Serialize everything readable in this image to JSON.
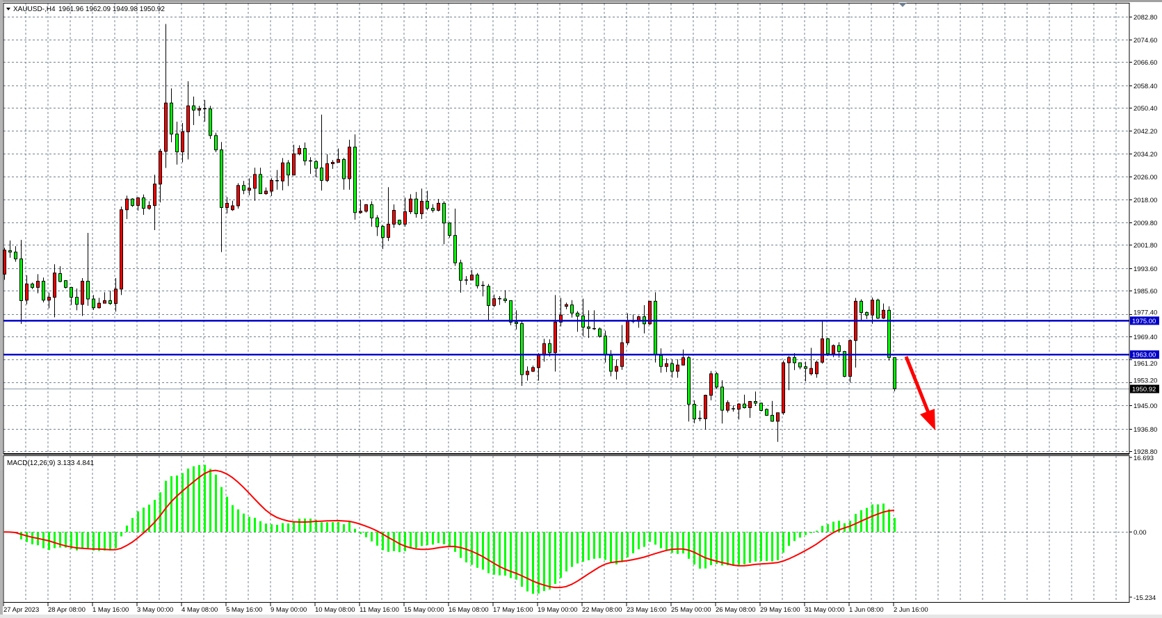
{
  "header": {
    "symbol": "XAUUSD-,H4",
    "ohlc": "1961.96 1962.09 1949.98 1950.92",
    "menu_icon": "triangle-down-icon"
  },
  "colors": {
    "background": "#ffffff",
    "grid": "#708090",
    "bull_body": "#ff0000",
    "bear_body": "#00ff00",
    "candle_outline": "#000000",
    "level_line": "#0000c8",
    "macd_histogram": "#00ff00",
    "macd_signal": "#ff0000",
    "arrow": "#ff0000",
    "bid_label_bg": "#000000"
  },
  "chart_data": [
    {
      "type": "candlestick",
      "title": "XAUUSD-,H4",
      "timeframe": "H4",
      "bull_color": "red",
      "bear_color": "green",
      "grid": true,
      "ylim": [
        1928.8,
        2082.8
      ],
      "price_ticks": [
        "2082.80",
        "2074.60",
        "2066.60",
        "2058.40",
        "2050.40",
        "2042.20",
        "2034.20",
        "2026.00",
        "2018.00",
        "2009.80",
        "2001.80",
        "1993.60",
        "1985.60",
        "1977.40",
        "1969.40",
        "1961.20",
        "1953.20",
        "1945.00",
        "1936.80",
        "1928.80"
      ],
      "time_labels": [
        "27 Apr 2023",
        "28 Apr 08:00",
        "1 May 16:00",
        "3 May 00:00",
        "4 May 08:00",
        "5 May 16:00",
        "9 May 00:00",
        "10 May 08:00",
        "11 May 16:00",
        "15 May 00:00",
        "16 May 08:00",
        "17 May 16:00",
        "19 May 00:00",
        "22 May 08:00",
        "23 May 16:00",
        "25 May 00:00",
        "26 May 08:00",
        "29 May 16:00",
        "31 May 00:00",
        "1 Jun 08:00",
        "2 Jun 16:00"
      ],
      "levels": [
        {
          "price": 1975.0,
          "label": "1975.00"
        },
        {
          "price": 1963.0,
          "label": "1963.00"
        }
      ],
      "current_price": {
        "price": 1950.92,
        "label": "1950.92"
      },
      "annotation": "red arrow pointing down after last candle",
      "candles_ohlc": [
        [
          1991.5,
          2000.8,
          1989.5,
          2000.0
        ],
        [
          1999.8,
          2003.4,
          1997.3,
          1999.3
        ],
        [
          1999.3,
          2001.4,
          1995.9,
          1996.9
        ],
        [
          1996.9,
          2003.6,
          1973.9,
          1982.1
        ],
        [
          1982.3,
          1991.1,
          1980.8,
          1988.0
        ],
        [
          1988.0,
          1988.5,
          1986.2,
          1986.8
        ],
        [
          1986.8,
          1991.5,
          1984.7,
          1989.0
        ],
        [
          1989.0,
          1990.3,
          1981.5,
          1982.3
        ],
        [
          1982.3,
          1984.9,
          1979.4,
          1983.3
        ],
        [
          1983.3,
          1995.0,
          1976.2,
          1991.9
        ],
        [
          1991.7,
          1994.3,
          1988.6,
          1988.9
        ],
        [
          1989.2,
          1989.4,
          1986.4,
          1986.8
        ],
        [
          1986.8,
          1987.0,
          1980.6,
          1983.3
        ],
        [
          1983.3,
          1986.4,
          1978.7,
          1980.8
        ],
        [
          1980.8,
          1990.1,
          1976.7,
          1989.0
        ],
        [
          1989.0,
          2006.1,
          1980.3,
          1982.7
        ],
        [
          1982.7,
          1984.1,
          1978.8,
          1979.6
        ],
        [
          1979.6,
          1983.1,
          1979.3,
          1981.2
        ],
        [
          1981.2,
          1985.1,
          1981.2,
          1982.1
        ],
        [
          1982.1,
          1985.6,
          1980.6,
          1981.1
        ],
        [
          1981.1,
          1990.1,
          1978.2,
          1986.2
        ],
        [
          1986.2,
          2015.4,
          1984.1,
          2014.3
        ],
        [
          2014.3,
          2019.3,
          2011.0,
          2018.1
        ],
        [
          2018.1,
          2018.4,
          2015.3,
          2015.8
        ],
        [
          2015.8,
          2018.8,
          2014.0,
          2018.5
        ],
        [
          2018.5,
          2019.7,
          2012.5,
          2014.8
        ],
        [
          2014.8,
          2017.3,
          2014.3,
          2015.8
        ],
        [
          2015.8,
          2026.7,
          2007.1,
          2023.4
        ],
        [
          2023.4,
          2035.9,
          2016.9,
          2035.0
        ],
        [
          2035.0,
          2080.1,
          2029.1,
          2052.1
        ],
        [
          2052.1,
          2057.3,
          2038.2,
          2041.1
        ],
        [
          2041.1,
          2045.5,
          2030.3,
          2034.8
        ],
        [
          2034.8,
          2045.0,
          2031.1,
          2041.9
        ],
        [
          2041.9,
          2059.8,
          2032.1,
          2051.1
        ],
        [
          2051.1,
          2054.4,
          2044.3,
          2049.6
        ],
        [
          2049.6,
          2051.1,
          2047.5,
          2050.1
        ],
        [
          2050.1,
          2053.2,
          2045.5,
          2050.0
        ],
        [
          2050.0,
          2051.1,
          2039.4,
          2040.6
        ],
        [
          2040.6,
          2041.6,
          2034.7,
          2035.5
        ],
        [
          2035.5,
          2038.3,
          1999.3,
          2015.1
        ],
        [
          2015.1,
          2018.8,
          2013.0,
          2016.6
        ],
        [
          2014.3,
          2017.5,
          2013.9,
          2015.7
        ],
        [
          2015.7,
          2023.7,
          2014.7,
          2022.9
        ],
        [
          2022.9,
          2024.5,
          2019.8,
          2021.2
        ],
        [
          2021.2,
          2025.4,
          2019.4,
          2021.9
        ],
        [
          2021.9,
          2029.2,
          2017.5,
          2026.8
        ],
        [
          2026.8,
          2029.2,
          2020.0,
          2020.0
        ],
        [
          2020.0,
          2022.2,
          2019.6,
          2020.9
        ],
        [
          2020.9,
          2025.5,
          2019.2,
          2024.7
        ],
        [
          2024.6,
          2028.4,
          2021.4,
          2024.5
        ],
        [
          2024.5,
          2032.6,
          2021.2,
          2030.9
        ],
        [
          2030.9,
          2031.9,
          2022.7,
          2026.6
        ],
        [
          2026.6,
          2037.3,
          2026.6,
          2034.1
        ],
        [
          2034.1,
          2037.1,
          2033.6,
          2036.0
        ],
        [
          2036.0,
          2038.1,
          2030.0,
          2031.6
        ],
        [
          2031.6,
          2032.9,
          2027.0,
          2031.5
        ],
        [
          2031.4,
          2031.9,
          2025.8,
          2029.0
        ],
        [
          2029.1,
          2048.0,
          2021.1,
          2024.7
        ],
        [
          2024.7,
          2034.0,
          2024.1,
          2030.6
        ],
        [
          2030.6,
          2031.9,
          2028.8,
          2031.1
        ],
        [
          2031.1,
          2036.0,
          2030.9,
          2032.1
        ],
        [
          2032.1,
          2032.7,
          2021.4,
          2025.3
        ],
        [
          2025.3,
          2039.1,
          2021.4,
          2036.5
        ],
        [
          2036.5,
          2041.0,
          2010.8,
          2013.3
        ],
        [
          2013.3,
          2017.9,
          2012.9,
          2013.8
        ],
        [
          2013.8,
          2016.3,
          2013.3,
          2016.1
        ],
        [
          2016.1,
          2017.3,
          2008.3,
          2011.4
        ],
        [
          2011.4,
          2012.4,
          2005.0,
          2008.3
        ],
        [
          2008.4,
          2008.9,
          2000.4,
          2004.5
        ],
        [
          2004.5,
          2022.3,
          2003.2,
          2009.2
        ],
        [
          2009.2,
          2016.2,
          2007.9,
          2014.1
        ],
        [
          2010.6,
          2010.8,
          2008.8,
          2009.2
        ],
        [
          2009.2,
          2018.6,
          2008.3,
          2013.6
        ],
        [
          2013.6,
          2019.8,
          2012.8,
          2018.1
        ],
        [
          2018.1,
          2020.6,
          2011.5,
          2012.9
        ],
        [
          2012.9,
          2021.8,
          2011.0,
          2017.3
        ],
        [
          2017.3,
          2021.0,
          2014.1,
          2014.8
        ],
        [
          2014.8,
          2016.3,
          2013.3,
          2014.1
        ],
        [
          2014.1,
          2018.1,
          2013.7,
          2016.6
        ],
        [
          2016.6,
          2017.3,
          2002.1,
          2009.6
        ],
        [
          2009.6,
          2009.9,
          2004.4,
          2005.2
        ],
        [
          2005.2,
          2014.7,
          1994.4,
          1995.5
        ],
        [
          1995.5,
          1996.6,
          1984.9,
          1989.3
        ],
        [
          1989.4,
          1990.8,
          1987.7,
          1989.3
        ],
        [
          1989.4,
          1993.0,
          1989.4,
          1991.2
        ],
        [
          1991.2,
          1991.9,
          1986.4,
          1987.4
        ],
        [
          1987.5,
          1989.0,
          1983.6,
          1987.4
        ],
        [
          1987.2,
          1988.0,
          1975.2,
          1980.4
        ],
        [
          1980.4,
          1984.3,
          1979.8,
          1982.8
        ],
        [
          1982.8,
          1983.7,
          1980.6,
          1982.7
        ],
        [
          1982.7,
          1985.8,
          1981.3,
          1982.1
        ],
        [
          1982.1,
          1982.1,
          1973.4,
          1974.5
        ],
        [
          1974.5,
          1978.7,
          1971.9,
          1974.0
        ],
        [
          1974.0,
          1974.8,
          1951.9,
          1955.9
        ],
        [
          1955.9,
          1958.8,
          1953.8,
          1957.1
        ],
        [
          1957.1,
          1959.1,
          1956.8,
          1958.4
        ],
        [
          1958.4,
          1963.5,
          1953.8,
          1962.8
        ],
        [
          1962.8,
          1968.6,
          1960.5,
          1966.9
        ],
        [
          1966.9,
          1968.4,
          1962.3,
          1963.7
        ],
        [
          1963.7,
          1984.1,
          1957.0,
          1974.5
        ],
        [
          1974.5,
          1983.1,
          1973.0,
          1977.0
        ],
        [
          1980.1,
          1981.4,
          1979.1,
          1980.7
        ],
        [
          1980.6,
          1982.3,
          1976.1,
          1977.7
        ],
        [
          1977.7,
          1978.4,
          1971.1,
          1976.6
        ],
        [
          1976.7,
          1982.8,
          1969.5,
          1972.7
        ],
        [
          1972.8,
          1978.7,
          1968.9,
          1972.3
        ],
        [
          1972.2,
          1978.7,
          1971.7,
          1972.1
        ],
        [
          1972.1,
          1972.6,
          1969.0,
          1969.5
        ],
        [
          1969.6,
          1971.5,
          1960.2,
          1963.1
        ],
        [
          1962.7,
          1964.6,
          1955.3,
          1957.1
        ],
        [
          1957.1,
          1961.3,
          1954.2,
          1958.8
        ],
        [
          1958.8,
          1973.5,
          1957.6,
          1967.2
        ],
        [
          1967.2,
          1977.6,
          1966.3,
          1974.8
        ],
        [
          1974.8,
          1977.2,
          1974.1,
          1974.7
        ],
        [
          1974.8,
          1976.8,
          1972.5,
          1976.4
        ],
        [
          1976.4,
          1980.5,
          1970.5,
          1973.9
        ],
        [
          1973.9,
          1981.9,
          1973.5,
          1981.9
        ],
        [
          1981.9,
          1985.1,
          1960.2,
          1963.1
        ],
        [
          1962.7,
          1965.2,
          1956.6,
          1958.8
        ],
        [
          1958.8,
          1961.7,
          1956.8,
          1959.8
        ],
        [
          1959.8,
          1961.3,
          1954.8,
          1957.1
        ],
        [
          1957.1,
          1961.3,
          1954.8,
          1959.3
        ],
        [
          1959.3,
          1964.8,
          1959.1,
          1961.9
        ],
        [
          1961.9,
          1962.5,
          1939.3,
          1945.4
        ],
        [
          1945.4,
          1946.8,
          1938.7,
          1940.2
        ],
        [
          1940.4,
          1943.2,
          1939.4,
          1940.3
        ],
        [
          1940.3,
          1948.8,
          1936.4,
          1948.6
        ],
        [
          1948.6,
          1957.2,
          1946.8,
          1956.2
        ],
        [
          1956.2,
          1956.8,
          1950.9,
          1951.5
        ],
        [
          1951.5,
          1953.9,
          1938.6,
          1943.3
        ],
        [
          1943.3,
          1946.8,
          1942.5,
          1946.0
        ],
        [
          1943.8,
          1945.0,
          1942.8,
          1943.7
        ],
        [
          1943.7,
          1945.8,
          1940.0,
          1945.5
        ],
        [
          1945.5,
          1948.8,
          1943.9,
          1944.2
        ],
        [
          1944.2,
          1946.6,
          1940.6,
          1946.4
        ],
        [
          1946.4,
          1949.9,
          1944.8,
          1945.8
        ],
        [
          1945.8,
          1946.0,
          1942.9,
          1943.2
        ],
        [
          1943.6,
          1943.9,
          1941.3,
          1941.5
        ],
        [
          1941.5,
          1946.6,
          1939.2,
          1939.4
        ],
        [
          1939.4,
          1942.5,
          1932.1,
          1942.4
        ],
        [
          1942.4,
          1960.9,
          1941.7,
          1960.1
        ],
        [
          1960.1,
          1962.5,
          1950.4,
          1962.0
        ],
        [
          1962.0,
          1963.5,
          1957.5,
          1960.1
        ],
        [
          1960.1,
          1960.2,
          1957.8,
          1958.6
        ],
        [
          1958.7,
          1960.5,
          1953.5,
          1958.1
        ],
        [
          1956.2,
          1965.4,
          1955.6,
          1958.1
        ],
        [
          1956.2,
          1960.9,
          1954.8,
          1960.3
        ],
        [
          1960.3,
          1974.8,
          1959.8,
          1968.6
        ],
        [
          1968.6,
          1968.9,
          1962.5,
          1963.3
        ],
        [
          1963.3,
          1966.6,
          1962.1,
          1966.2
        ],
        [
          1966.2,
          1967.4,
          1961.9,
          1964.1
        ],
        [
          1964.1,
          1964.3,
          1955.0,
          1955.3
        ],
        [
          1955.3,
          1968.4,
          1953.1,
          1968.0
        ],
        [
          1968.0,
          1983.1,
          1958.4,
          1981.9
        ],
        [
          1981.9,
          1982.6,
          1975.2,
          1977.9
        ],
        [
          1977.9,
          1978.3,
          1975.6,
          1977.0
        ],
        [
          1977.0,
          1983.2,
          1973.9,
          1982.3
        ],
        [
          1982.3,
          1982.8,
          1975.6,
          1975.9
        ],
        [
          1975.9,
          1981.1,
          1975.6,
          1978.7
        ],
        [
          1978.7,
          1980.1,
          1960.9,
          1962.0
        ],
        [
          1961.96,
          1962.09,
          1949.98,
          1950.92
        ]
      ]
    },
    {
      "type": "bar+line",
      "title": "MACD(12,26,9) 3.133 4.841",
      "indicator": "MACD",
      "params": {
        "fast": 12,
        "slow": 26,
        "signal": 9
      },
      "values_text": {
        "main": "3.133",
        "signal": "4.841"
      },
      "label": "MACD(12,26,9)",
      "ylim": [
        -15.234,
        16.693
      ],
      "ticks": [
        "16.693",
        "0.00",
        "-15.234"
      ],
      "histogram": "main line as green bars",
      "signal_line": "red"
    }
  ]
}
